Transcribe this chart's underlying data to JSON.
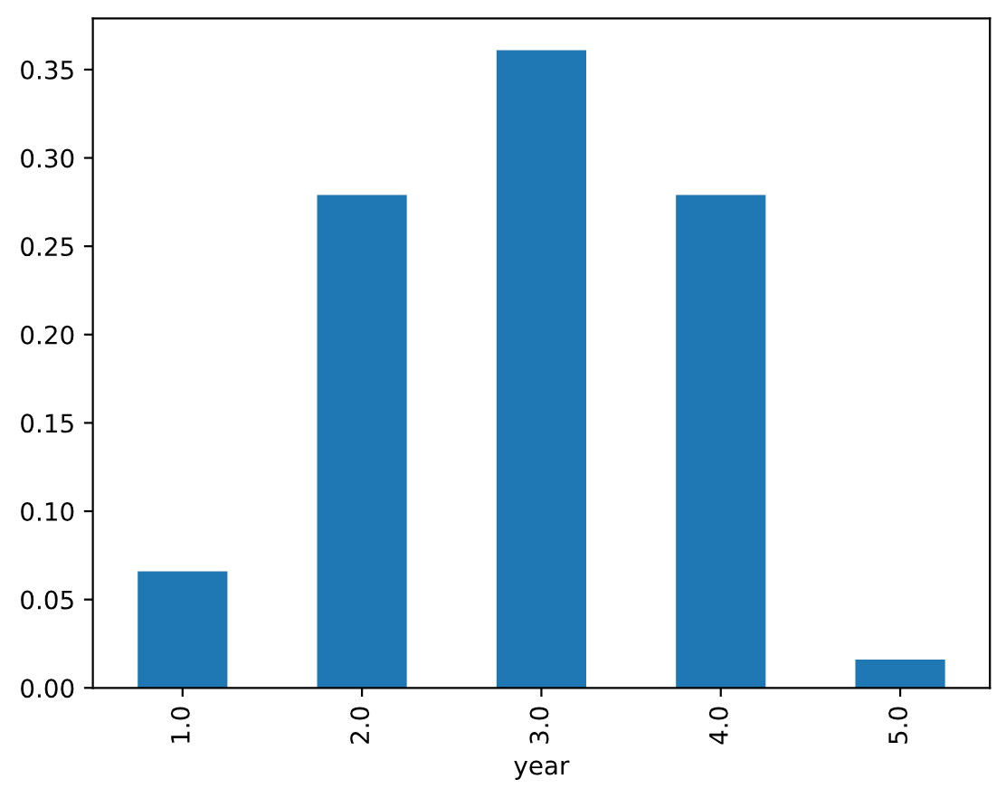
{
  "chart_data": {
    "type": "bar",
    "xlabel": "year",
    "categories": [
      "1.0",
      "2.0",
      "3.0",
      "4.0",
      "5.0"
    ],
    "values": [
      0.066,
      0.279,
      0.361,
      0.279,
      0.016
    ],
    "color": "#1f77b4",
    "ylim": [
      0,
      0.379
    ],
    "yticks": [
      {
        "value": 0,
        "label": "0.00"
      },
      {
        "value": 0.05,
        "label": "0.05"
      },
      {
        "value": 0.1,
        "label": "0.10"
      },
      {
        "value": 0.15,
        "label": "0.15"
      },
      {
        "value": 0.2,
        "label": "0.20"
      },
      {
        "value": 0.25,
        "label": "0.25"
      },
      {
        "value": 0.3,
        "label": "0.30"
      },
      {
        "value": 0.35,
        "label": "0.35"
      }
    ],
    "grid": false,
    "legend": false
  }
}
